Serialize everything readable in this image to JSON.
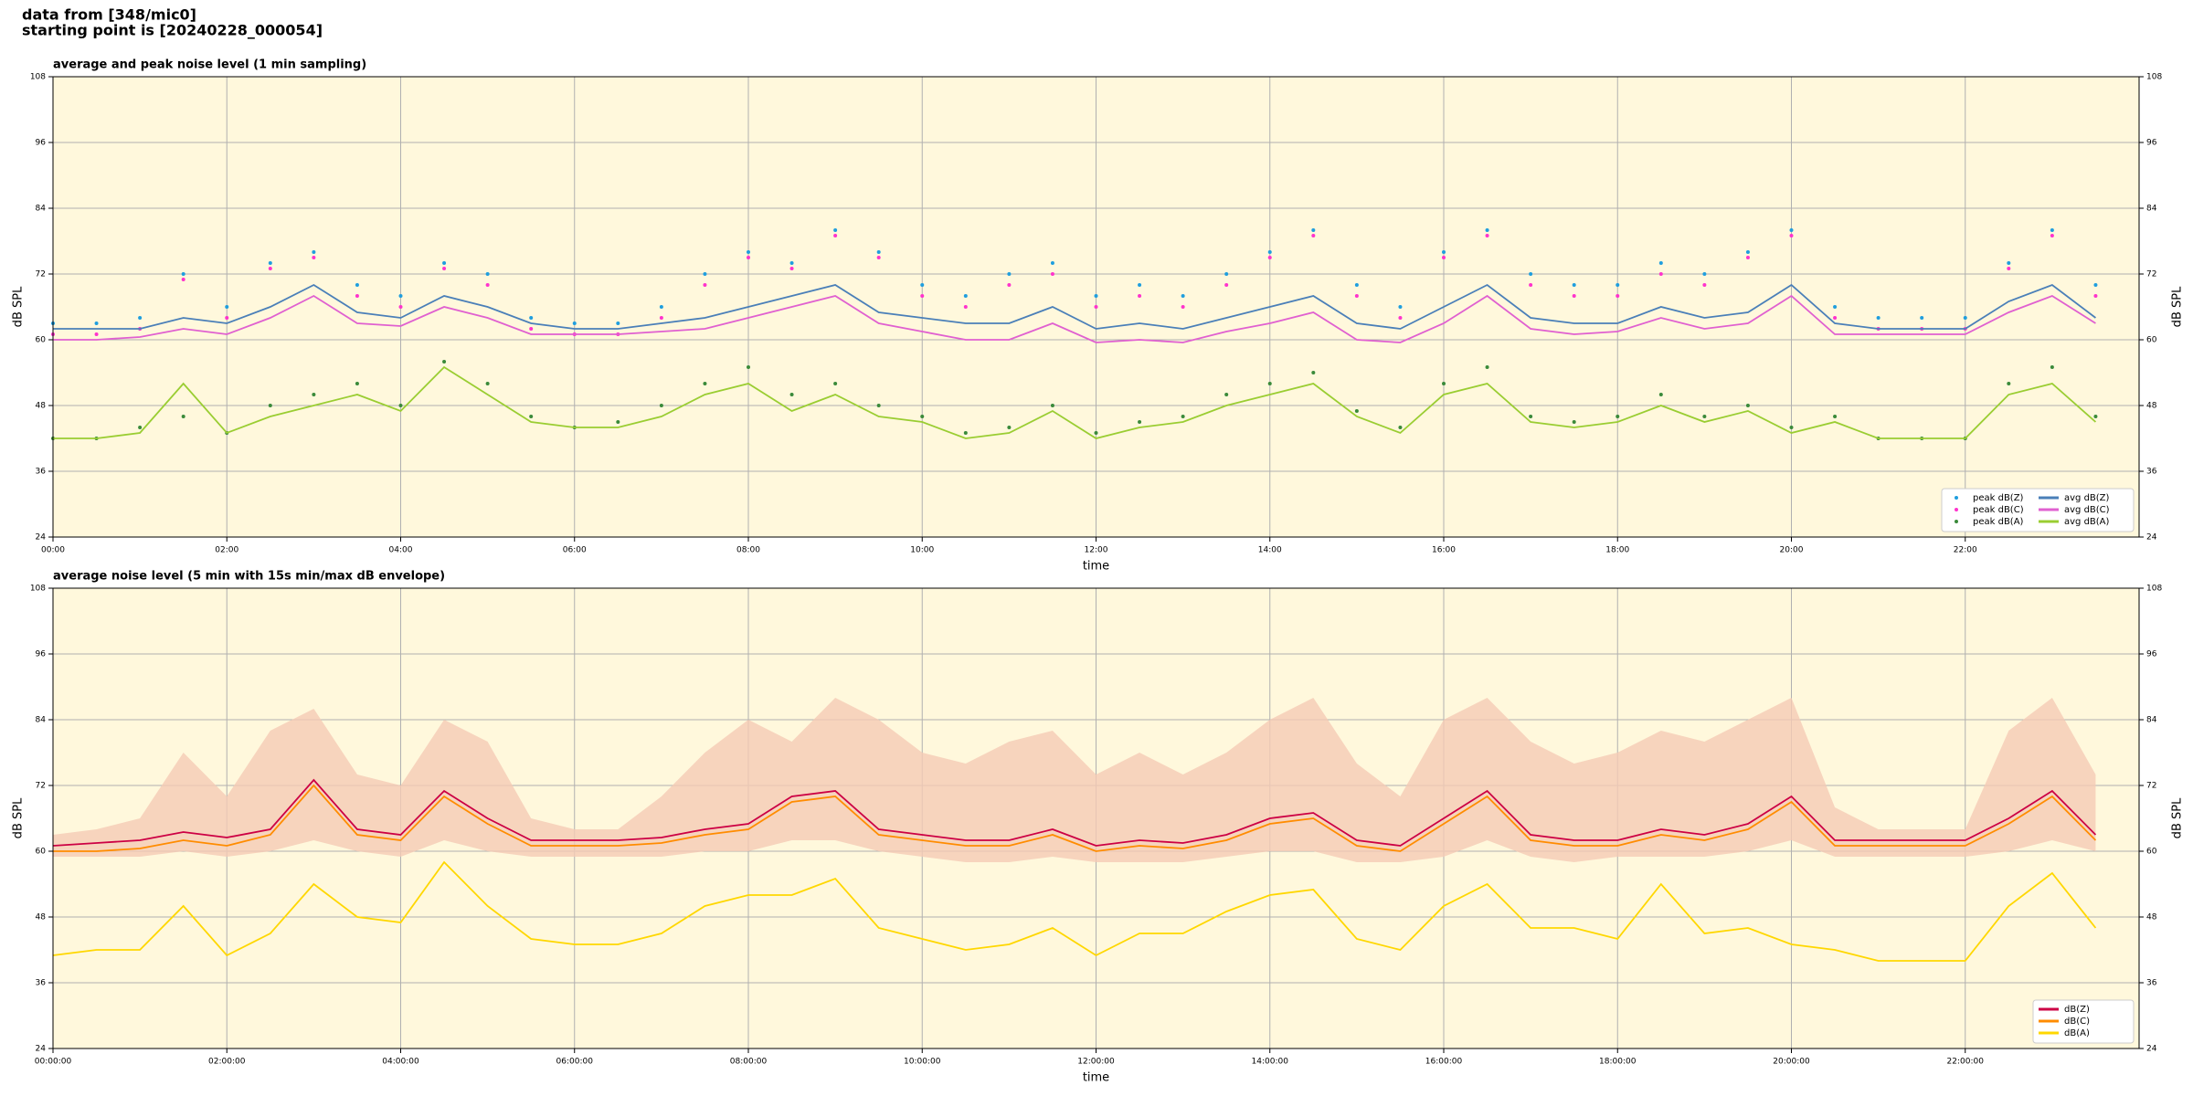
{
  "header": [
    "data from [348/mic0]",
    "starting point is [20240228_000054]"
  ],
  "chart_data": [
    {
      "type": "line",
      "title": "average and peak noise level (1 min sampling)",
      "x_label": "time",
      "y_label": "dB SPL",
      "xlim": [
        0,
        24
      ],
      "xticks": [
        {
          "value": 0,
          "label": "00:00"
        },
        {
          "value": 2,
          "label": "02:00"
        },
        {
          "value": 4,
          "label": "04:00"
        },
        {
          "value": 6,
          "label": "06:00"
        },
        {
          "value": 8,
          "label": "08:00"
        },
        {
          "value": 10,
          "label": "10:00"
        },
        {
          "value": 12,
          "label": "12:00"
        },
        {
          "value": 14,
          "label": "14:00"
        },
        {
          "value": 16,
          "label": "16:00"
        },
        {
          "value": 18,
          "label": "18:00"
        },
        {
          "value": 20,
          "label": "20:00"
        },
        {
          "value": 22,
          "label": "22:00"
        }
      ],
      "ylim": [
        24,
        108
      ],
      "yticks": [
        24,
        36,
        48,
        60,
        72,
        84,
        96,
        108
      ],
      "grid": true,
      "background": "#fff8dc",
      "legend": "lower right",
      "legend_columns": 2,
      "x": [
        0,
        0.5,
        1,
        1.5,
        2,
        2.5,
        3,
        3.5,
        4,
        4.5,
        5,
        5.5,
        6,
        6.5,
        7,
        7.5,
        8,
        8.5,
        9,
        9.5,
        10,
        10.5,
        11,
        11.5,
        12,
        12.5,
        13,
        13.5,
        14,
        14.5,
        15,
        15.5,
        16,
        16.5,
        17,
        17.5,
        18,
        18.5,
        19,
        19.5,
        20,
        20.5,
        21,
        21.5,
        22,
        22.5,
        23,
        23.5
      ],
      "series": [
        {
          "name": "peak dB(Z)",
          "kind": "scatter",
          "color": "#1f9ede",
          "values": [
            63,
            63,
            64,
            72,
            66,
            74,
            76,
            70,
            68,
            74,
            72,
            64,
            63,
            63,
            66,
            72,
            76,
            74,
            80,
            76,
            70,
            68,
            72,
            74,
            68,
            70,
            68,
            72,
            76,
            80,
            70,
            66,
            76,
            80,
            72,
            70,
            70,
            74,
            72,
            76,
            80,
            66,
            64,
            64,
            64,
            74,
            80,
            70
          ]
        },
        {
          "name": "peak dB(C)",
          "kind": "scatter",
          "color": "#ff33cc",
          "values": [
            61,
            61,
            62,
            71,
            64,
            73,
            75,
            68,
            66,
            73,
            70,
            62,
            61,
            61,
            64,
            70,
            75,
            73,
            79,
            75,
            68,
            66,
            70,
            72,
            66,
            68,
            66,
            70,
            75,
            79,
            68,
            64,
            75,
            79,
            70,
            68,
            68,
            72,
            70,
            75,
            79,
            64,
            62,
            62,
            62,
            73,
            79,
            68
          ]
        },
        {
          "name": "peak dB(A)",
          "kind": "scatter",
          "color": "#3a8a3a",
          "values": [
            42,
            42,
            44,
            46,
            43,
            48,
            50,
            52,
            48,
            56,
            52,
            46,
            44,
            45,
            48,
            52,
            55,
            50,
            52,
            48,
            46,
            43,
            44,
            48,
            43,
            45,
            46,
            50,
            52,
            54,
            47,
            44,
            52,
            55,
            46,
            45,
            46,
            50,
            46,
            48,
            44,
            46,
            42,
            42,
            42,
            52,
            55,
            46
          ]
        },
        {
          "name": "avg dB(Z)",
          "kind": "line",
          "color": "#4a7fb8",
          "values": [
            62,
            62,
            62,
            64,
            63,
            66,
            70,
            65,
            64,
            68,
            66,
            63,
            62,
            62,
            63,
            64,
            66,
            68,
            70,
            65,
            64,
            63,
            63,
            66,
            62,
            63,
            62,
            64,
            66,
            68,
            63,
            62,
            66,
            70,
            64,
            63,
            63,
            66,
            64,
            65,
            70,
            63,
            62,
            62,
            62,
            67,
            70,
            64
          ]
        },
        {
          "name": "avg dB(C)",
          "kind": "line",
          "color": "#e060d0",
          "values": [
            60,
            60,
            60.5,
            62,
            61,
            64,
            68,
            63,
            62.5,
            66,
            64,
            61,
            61,
            61,
            61.5,
            62,
            64,
            66,
            68,
            63,
            61.5,
            60,
            60,
            63,
            59.5,
            60,
            59.5,
            61.5,
            63,
            65,
            60,
            59.5,
            63,
            68,
            62,
            61,
            61.5,
            64,
            62,
            63,
            68,
            61,
            61,
            61,
            61,
            65,
            68,
            63
          ]
        },
        {
          "name": "avg dB(A)",
          "kind": "line",
          "color": "#9acd32",
          "values": [
            42,
            42,
            43,
            52,
            43,
            46,
            48,
            50,
            47,
            55,
            50,
            45,
            44,
            44,
            46,
            50,
            52,
            47,
            50,
            46,
            45,
            42,
            43,
            47,
            42,
            44,
            45,
            48,
            50,
            52,
            46,
            43,
            50,
            52,
            45,
            44,
            45,
            48,
            45,
            47,
            43,
            45,
            42,
            42,
            42,
            50,
            52,
            45
          ]
        }
      ]
    },
    {
      "type": "line",
      "title": "average noise level (5 min with 15s min/max dB envelope)",
      "x_label": "time",
      "y_label": "dB SPL",
      "xlim": [
        0,
        24
      ],
      "xticks": [
        {
          "value": 0,
          "label": "00:00:00"
        },
        {
          "value": 2,
          "label": "02:00:00"
        },
        {
          "value": 4,
          "label": "04:00:00"
        },
        {
          "value": 6,
          "label": "06:00:00"
        },
        {
          "value": 8,
          "label": "08:00:00"
        },
        {
          "value": 10,
          "label": "10:00:00"
        },
        {
          "value": 12,
          "label": "12:00:00"
        },
        {
          "value": 14,
          "label": "14:00:00"
        },
        {
          "value": 16,
          "label": "16:00:00"
        },
        {
          "value": 18,
          "label": "18:00:00"
        },
        {
          "value": 20,
          "label": "20:00:00"
        },
        {
          "value": 22,
          "label": "22:00:00"
        }
      ],
      "ylim": [
        24,
        108
      ],
      "yticks": [
        24,
        36,
        48,
        60,
        72,
        84,
        96,
        108
      ],
      "grid": true,
      "background": "#fff8dc",
      "legend": "lower right",
      "legend_columns": 1,
      "x": [
        0,
        0.5,
        1,
        1.5,
        2,
        2.5,
        3,
        3.5,
        4,
        4.5,
        5,
        5.5,
        6,
        6.5,
        7,
        7.5,
        8,
        8.5,
        9,
        9.5,
        10,
        10.5,
        11,
        11.5,
        12,
        12.5,
        13,
        13.5,
        14,
        14.5,
        15,
        15.5,
        16,
        16.5,
        17,
        17.5,
        18,
        18.5,
        19,
        19.5,
        20,
        20.5,
        21,
        21.5,
        22,
        22.5,
        23,
        23.5
      ],
      "envelope": {
        "color": "#f5cbb5",
        "min": [
          59,
          59,
          59,
          60,
          59,
          60,
          62,
          60,
          59,
          62,
          60,
          59,
          59,
          59,
          59,
          60,
          60,
          62,
          62,
          60,
          59,
          58,
          58,
          59,
          58,
          58,
          58,
          59,
          60,
          60,
          58,
          58,
          59,
          62,
          59,
          58,
          59,
          59,
          59,
          60,
          62,
          59,
          59,
          59,
          59,
          60,
          62,
          60
        ],
        "max": [
          63,
          64,
          66,
          78,
          70,
          82,
          86,
          74,
          72,
          84,
          80,
          66,
          64,
          64,
          70,
          78,
          84,
          80,
          88,
          84,
          78,
          76,
          80,
          82,
          74,
          78,
          74,
          78,
          84,
          88,
          76,
          70,
          84,
          88,
          80,
          76,
          78,
          82,
          80,
          84,
          88,
          68,
          64,
          64,
          64,
          82,
          88,
          74
        ]
      },
      "series": [
        {
          "name": "dB(Z)",
          "kind": "line",
          "color": "#cc0044",
          "values": [
            61,
            61.5,
            62,
            63.5,
            62.5,
            64,
            73,
            64,
            63,
            71,
            66,
            62,
            62,
            62,
            62.5,
            64,
            65,
            70,
            71,
            64,
            63,
            62,
            62,
            64,
            61,
            62,
            61.5,
            63,
            66,
            67,
            62,
            61,
            66,
            71,
            63,
            62,
            62,
            64,
            63,
            65,
            70,
            62,
            62,
            62,
            62,
            66,
            71,
            63
          ]
        },
        {
          "name": "dB(C)",
          "kind": "line",
          "color": "#ff8c00",
          "values": [
            60,
            60,
            60.5,
            62,
            61,
            63,
            72,
            63,
            62,
            70,
            65,
            61,
            61,
            61,
            61.5,
            63,
            64,
            69,
            70,
            63,
            62,
            61,
            61,
            63,
            60,
            61,
            60.5,
            62,
            65,
            66,
            61,
            60,
            65,
            70,
            62,
            61,
            61,
            63,
            62,
            64,
            69,
            61,
            61,
            61,
            61,
            65,
            70,
            62
          ]
        },
        {
          "name": "dB(A)",
          "kind": "line",
          "color": "#ffd700",
          "values": [
            41,
            42,
            42,
            50,
            41,
            45,
            54,
            48,
            47,
            58,
            50,
            44,
            43,
            43,
            45,
            50,
            52,
            52,
            55,
            46,
            44,
            42,
            43,
            46,
            41,
            45,
            45,
            49,
            52,
            53,
            44,
            42,
            50,
            54,
            46,
            46,
            44,
            54,
            45,
            46,
            43,
            42,
            40,
            40,
            40,
            50,
            56,
            46
          ]
        }
      ]
    }
  ]
}
